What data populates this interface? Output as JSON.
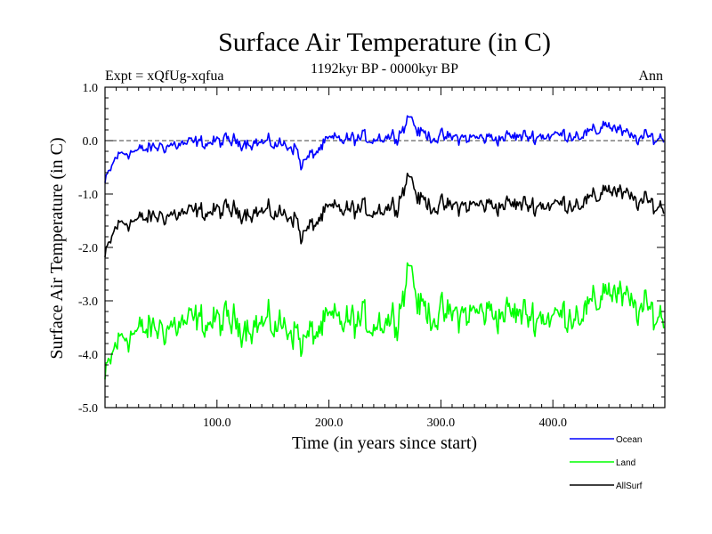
{
  "chart_data": {
    "type": "line",
    "title": "Surface Air Temperature (in C)",
    "subtitle_left": "Expt = xQfUg-xqfua",
    "subtitle_center": "1192kyr BP - 0000kyr BP",
    "subtitle_right": "Ann",
    "xlabel": "Time (in years since start)",
    "ylabel": "Surface Air Temperature (in C)",
    "xlim": [
      0,
      500
    ],
    "ylim": [
      -5.0,
      1.0
    ],
    "xticks": [
      100,
      200,
      300,
      400
    ],
    "xtick_labels": [
      "100.0",
      "200.0",
      "300.0",
      "400.0"
    ],
    "yticks": [
      1.0,
      0.0,
      -1.0,
      -2.0,
      -3.0,
      -4.0,
      -5.0
    ],
    "ytick_labels": [
      "1.0",
      "0.0",
      "-1.0",
      "-2.0",
      "-3.0",
      "-4.0",
      "-5.0"
    ],
    "reference_line": 0.0,
    "series": [
      {
        "name": "Ocean",
        "color": "#0000ff",
        "x": [
          0,
          10,
          20,
          30,
          50,
          80,
          120,
          170,
          175,
          200,
          240,
          260,
          268,
          272,
          280,
          300,
          340,
          400,
          440,
          445,
          470,
          499
        ],
        "values": [
          -0.8,
          -0.3,
          -0.2,
          -0.2,
          -0.1,
          -0.05,
          0.0,
          -0.1,
          -0.45,
          0.0,
          0.05,
          0.1,
          0.3,
          0.5,
          0.15,
          0.05,
          0.05,
          0.1,
          0.15,
          0.35,
          0.05,
          0.05
        ]
      },
      {
        "name": "Land",
        "color": "#00ff00",
        "x": [
          0,
          10,
          20,
          30,
          50,
          80,
          120,
          170,
          175,
          200,
          240,
          260,
          268,
          272,
          280,
          300,
          340,
          400,
          440,
          445,
          470,
          499
        ],
        "values": [
          -4.5,
          -3.8,
          -3.6,
          -3.6,
          -3.5,
          -3.4,
          -3.4,
          -3.5,
          -3.8,
          -3.4,
          -3.4,
          -3.3,
          -2.7,
          -2.2,
          -3.1,
          -3.3,
          -3.2,
          -3.3,
          -3.1,
          -2.7,
          -3.1,
          -3.3
        ]
      },
      {
        "name": "AllSurf",
        "color": "#000000",
        "x": [
          0,
          10,
          20,
          30,
          50,
          80,
          120,
          170,
          175,
          200,
          240,
          260,
          268,
          272,
          280,
          300,
          340,
          400,
          440,
          445,
          470,
          499
        ],
        "values": [
          -2.2,
          -1.6,
          -1.5,
          -1.5,
          -1.4,
          -1.35,
          -1.3,
          -1.4,
          -1.8,
          -1.3,
          -1.3,
          -1.2,
          -0.8,
          -0.6,
          -1.1,
          -1.25,
          -1.2,
          -1.2,
          -1.1,
          -0.85,
          -1.1,
          -1.25
        ]
      }
    ],
    "legend": [
      "Ocean",
      "Land",
      "AllSurf"
    ],
    "legend_position": "bottom-right"
  }
}
